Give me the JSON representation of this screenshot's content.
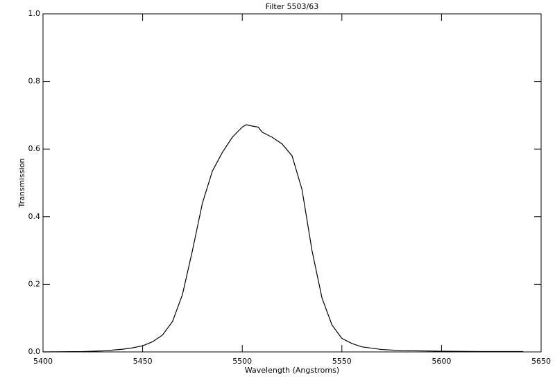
{
  "chart_data": {
    "type": "line",
    "title": "Filter 5503/63",
    "x_label": "Wavelength (Angstroms)",
    "y_label": "Transmission",
    "x": [
      5400,
      5420,
      5430,
      5440,
      5445,
      5450,
      5455,
      5460,
      5465,
      5470,
      5475,
      5480,
      5485,
      5490,
      5495,
      5500,
      5502,
      5505,
      5508,
      5510,
      5515,
      5520,
      5525,
      5530,
      5535,
      5540,
      5545,
      5550,
      5555,
      5560,
      5570,
      5580,
      5600,
      5620,
      5641
    ],
    "series": [
      {
        "color": "#000000",
        "values": [
          0.0,
          0.001,
          0.003,
          0.008,
          0.012,
          0.018,
          0.03,
          0.05,
          0.09,
          0.17,
          0.3,
          0.44,
          0.535,
          0.59,
          0.635,
          0.665,
          0.672,
          0.668,
          0.665,
          0.65,
          0.635,
          0.615,
          0.58,
          0.48,
          0.3,
          0.16,
          0.08,
          0.04,
          0.025,
          0.015,
          0.007,
          0.004,
          0.002,
          0.001,
          0.001
        ]
      }
    ],
    "xlim": [
      5400,
      5650
    ],
    "xticks": [
      5400,
      5450,
      5500,
      5550,
      5600,
      5650
    ],
    "ylim": [
      0,
      1
    ],
    "yticks": [
      {
        "value": 0,
        "label": "0.0"
      },
      0.2,
      0.4,
      0.6,
      0.8,
      {
        "value": 1,
        "label": "1.0"
      }
    ]
  }
}
